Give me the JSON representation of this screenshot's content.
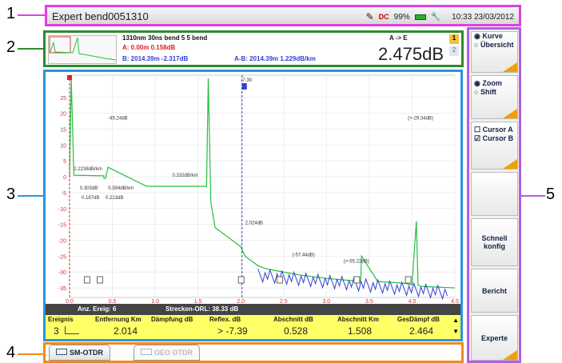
{
  "callouts": [
    "1",
    "2",
    "3",
    "4",
    "5"
  ],
  "titlebar": {
    "title": "Expert bend0051310",
    "battery": "99%",
    "time": "10:33 23/03/2012",
    "dc": "DC"
  },
  "info": {
    "line1": "1310nm  30ns  bend  5 5  bend",
    "direction": "A -> E",
    "lineA": "A: 0.00m  0.158dB",
    "lineB": "B: 2014.39m -2.317dB",
    "lineAB": "A-B: 2014.39m 1.229dB/km",
    "value": "2.475dB",
    "badge1": "1",
    "badge2": "2"
  },
  "chart_data": {
    "type": "line",
    "xlim": [
      0,
      4.5
    ],
    "ylim": [
      -38,
      32
    ],
    "x_ticks": [
      "0.0",
      "0.5",
      "1.0",
      "1.5",
      "2.0",
      "2.5",
      "3.0",
      "3.5",
      "4.0",
      "4.5"
    ],
    "y_ticks": [
      "25",
      "20",
      "15",
      "10",
      "5",
      "0",
      "-5",
      "-10",
      "-15",
      "-20",
      "-25",
      "-30",
      "-35"
    ],
    "annotations": [
      "-45.24dB",
      "2.2238dB/km",
      "0.303dB",
      "0.394dB/km",
      "0.187dB",
      "0.213dB",
      "0.332dB/km",
      "2.024dB",
      "(-57.44dB)",
      "(>-55.22dB)",
      "(>-29.34dB)",
      "-7.39"
    ],
    "series": [
      {
        "x": [
          0,
          0.02,
          0.05,
          0.4,
          0.4,
          0.42,
          0.45,
          0.9,
          1.6,
          1.62,
          1.65,
          1.7,
          2.0,
          2.05,
          2.1,
          2.2,
          2.3,
          2.5,
          2.7,
          3.0,
          3.2,
          3.4,
          3.41,
          3.6,
          3.9,
          4.0,
          4.05,
          4.07,
          4.1,
          4.5
        ],
        "y": [
          0,
          31,
          0.5,
          0.3,
          -0.5,
          -0.5,
          3,
          -3,
          -3,
          31,
          -8,
          -16,
          -22,
          -25,
          -26,
          -28,
          -29,
          -30,
          -31,
          -32,
          -32.5,
          -33,
          -25,
          -33,
          -33.5,
          -34,
          -14,
          -34,
          -34.5,
          -35
        ]
      }
    ]
  },
  "table": {
    "summary_left": "Anz. Ereig: 6",
    "summary_right": "Strecken-ORL: 38.33 dB",
    "headers": [
      "Ereignis",
      "Entfernung Km",
      "Dämpfung dB",
      "Reflex. dB",
      "Abschnitt dB",
      "Abschnitt Km",
      "GesDämpf dB"
    ],
    "row": [
      "3",
      "2.014",
      "",
      "> -7.39",
      "0.528",
      "1.508",
      "2.464"
    ]
  },
  "tabs": [
    {
      "label": "SM-OTDR"
    },
    {
      "label": "OEO OTDR"
    }
  ],
  "panel": {
    "b1": [
      "Kurve",
      "Übersicht"
    ],
    "b2": [
      "Zoom",
      "Shift"
    ],
    "b3": [
      "Cursor A",
      "Cursor B"
    ],
    "b4": "Schnell konfig",
    "b5": "Bericht",
    "b6": "Experte"
  },
  "colors": {
    "accent": "#2a95e0",
    "trace_green": "#22c040",
    "trace_blue": "#3040d0",
    "marker_red": "#e02020"
  }
}
